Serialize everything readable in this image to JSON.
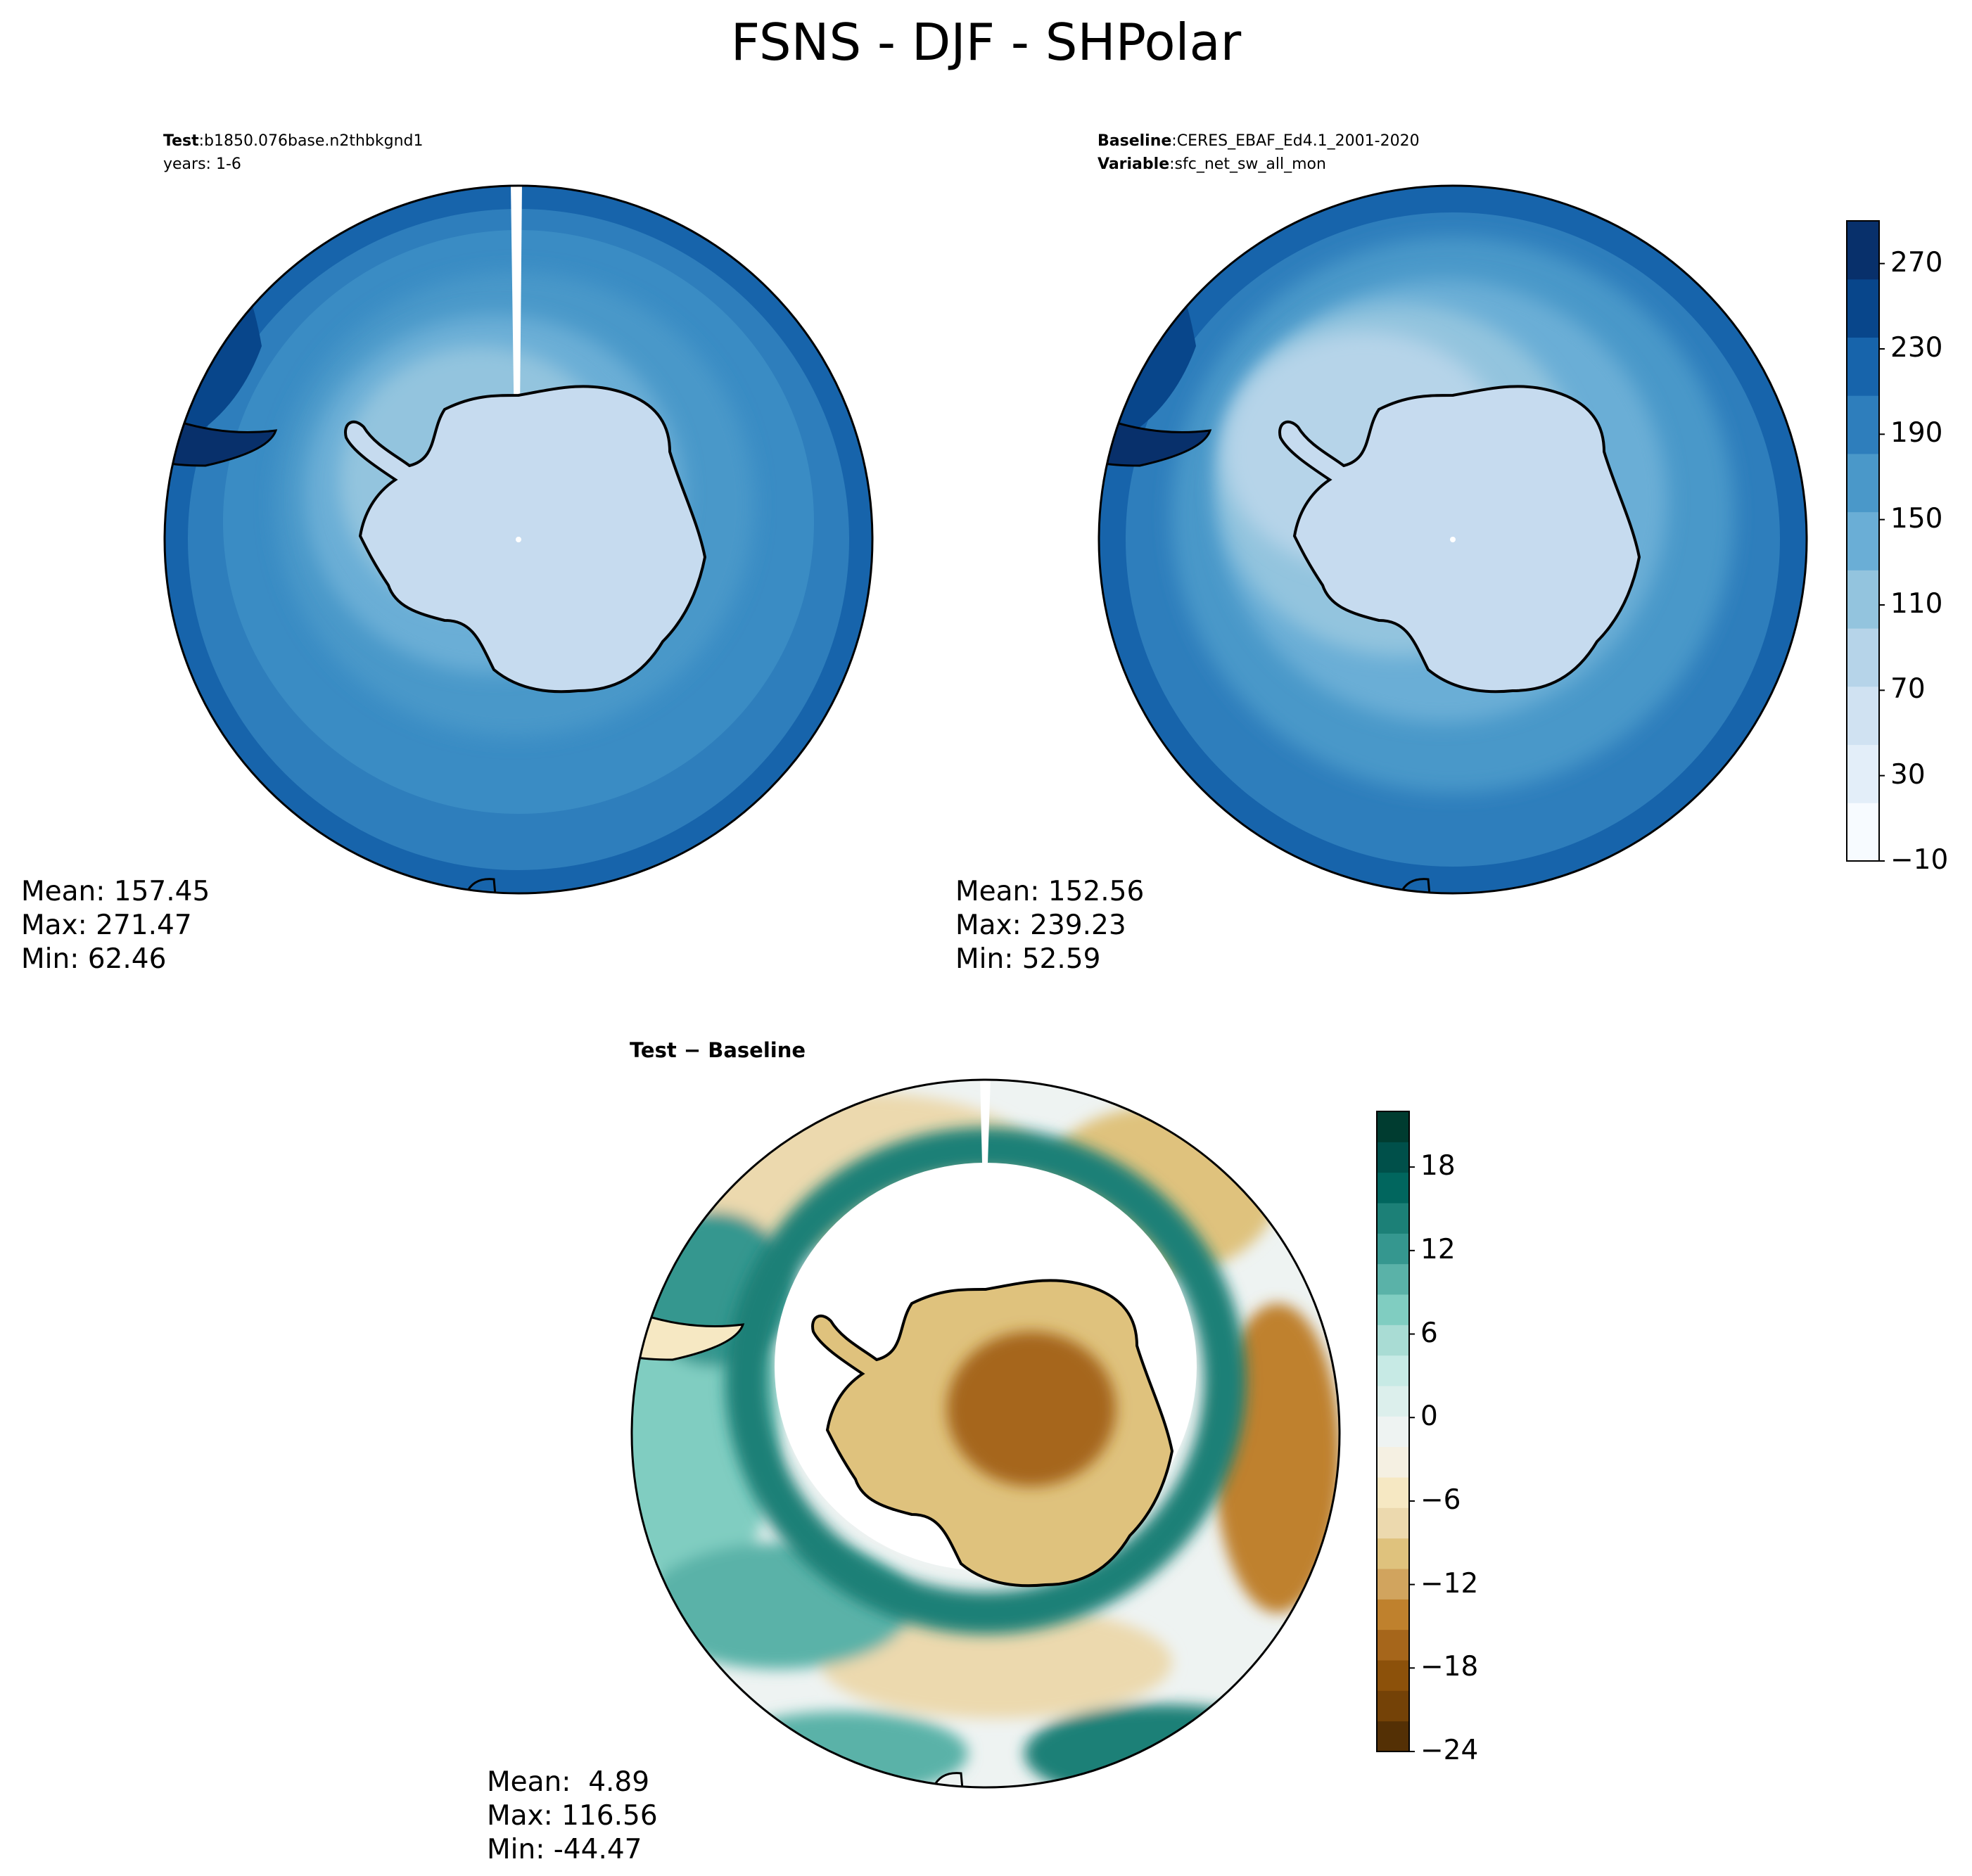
{
  "page_title": "FSNS - DJF - SHPolar",
  "chart_data": [
    {
      "type": "heatmap",
      "panel": "test",
      "projection": "south polar stereographic",
      "info_lines": [
        {
          "label": "Test",
          "value": "b1850.076base.n2thbkgnd1"
        },
        {
          "label": "",
          "value": "years: 1-6"
        }
      ],
      "stats": {
        "mean": "Mean: 157.45",
        "max": "Max: 271.47",
        "min": "Min: 62.46"
      },
      "values": {
        "mean": 157.45,
        "max": 271.47,
        "min": 62.46
      }
    },
    {
      "type": "heatmap",
      "panel": "baseline",
      "projection": "south polar stereographic",
      "info_lines": [
        {
          "label": "Baseline",
          "value": "CERES_EBAF_Ed4.1_2001-2020"
        },
        {
          "label": "Variable",
          "value": "sfc_net_sw_all_mon"
        }
      ],
      "stats": {
        "mean": "Mean: 152.56",
        "max": "Max: 239.23",
        "min": "Min: 52.59"
      },
      "values": {
        "mean": 152.56,
        "max": 239.23,
        "min": 52.59
      },
      "colorbar": {
        "range": [
          -10,
          290
        ],
        "ticks": [
          -10,
          30,
          70,
          110,
          150,
          190,
          230,
          270
        ],
        "tick_labels": [
          "−10",
          "30",
          "70",
          "110",
          "150",
          "190",
          "230",
          "270"
        ],
        "colors": [
          "#f7fbff",
          "#e3eef9",
          "#d0e2f2",
          "#b6d4e9",
          "#93c4de",
          "#6aaed6",
          "#4a98c9",
          "#2e7ebc",
          "#1764ab",
          "#08468b",
          "#08306b"
        ]
      }
    },
    {
      "type": "heatmap",
      "panel": "difference",
      "projection": "south polar stereographic",
      "title": "Test − Baseline",
      "stats": {
        "mean": "Mean:  4.89",
        "max": "Max: 116.56",
        "min": "Min: -44.47"
      },
      "values": {
        "mean": 4.89,
        "max": 116.56,
        "min": -44.47
      },
      "colorbar": {
        "range": [
          -24,
          22
        ],
        "ticks": [
          -24,
          -18,
          -12,
          -6,
          0,
          6,
          12,
          18
        ],
        "tick_labels": [
          "−24",
          "−18",
          "−12",
          "−6",
          "0",
          "6",
          "12",
          "18"
        ],
        "colors": [
          "#543005",
          "#744207",
          "#8c510a",
          "#a6661b",
          "#bf812d",
          "#d1a45e",
          "#dfc27d",
          "#ecd9ae",
          "#f6e8c3",
          "#f5f0e2",
          "#eef3f2",
          "#dcefec",
          "#c7eae5",
          "#a9dcd4",
          "#80cdc1",
          "#5ab2a8",
          "#35978f",
          "#1c8077",
          "#01665e",
          "#00504a",
          "#003c30"
        ]
      }
    }
  ]
}
